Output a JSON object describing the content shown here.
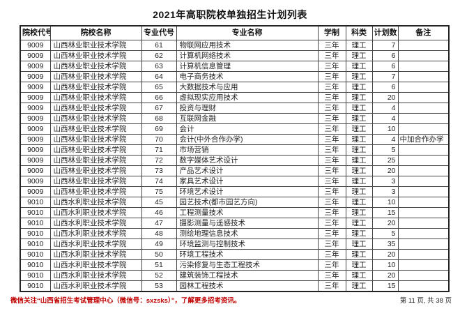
{
  "page": {
    "title": "2021年高职院校单独招生计划列表",
    "footer": {
      "notice": "微信关注“山西省招生考试管理中心（微信号：sxzsks）”，了解更多招考资讯。",
      "page_info": "第 11 页, 共 38 页"
    }
  },
  "table": {
    "headers": [
      "院校代号",
      "院校名称",
      "专业代号",
      "专业名称",
      "学制",
      "科类",
      "计划数",
      "备注"
    ],
    "rows": [
      [
        "9009",
        "山西林业职业技术学院",
        "61",
        "物联网应用技术",
        "三年",
        "理工",
        "7",
        ""
      ],
      [
        "9009",
        "山西林业职业技术学院",
        "62",
        "计算机网络技术",
        "三年",
        "理工",
        "6",
        ""
      ],
      [
        "9009",
        "山西林业职业技术学院",
        "63",
        "计算机信息管理",
        "三年",
        "理工",
        "6",
        ""
      ],
      [
        "9009",
        "山西林业职业技术学院",
        "64",
        "电子商务技术",
        "三年",
        "理工",
        "7",
        ""
      ],
      [
        "9009",
        "山西林业职业技术学院",
        "65",
        "大数据技术与应用",
        "三年",
        "理工",
        "6",
        ""
      ],
      [
        "9009",
        "山西林业职业技术学院",
        "66",
        "虚拟现实应用技术",
        "三年",
        "理工",
        "20",
        ""
      ],
      [
        "9009",
        "山西林业职业技术学院",
        "67",
        "投资与理财",
        "三年",
        "理工",
        "4",
        ""
      ],
      [
        "9009",
        "山西林业职业技术学院",
        "68",
        "互联网金融",
        "三年",
        "理工",
        "4",
        ""
      ],
      [
        "9009",
        "山西林业职业技术学院",
        "69",
        "会计",
        "三年",
        "理工",
        "10",
        ""
      ],
      [
        "9009",
        "山西林业职业技术学院",
        "70",
        "会计(中外合作办学)",
        "三年",
        "理工",
        "4",
        "中加合作办学"
      ],
      [
        "9009",
        "山西林业职业技术学院",
        "71",
        "市场营销",
        "三年",
        "理工",
        "5",
        ""
      ],
      [
        "9009",
        "山西林业职业技术学院",
        "72",
        "数字媒体艺术设计",
        "三年",
        "理工",
        "25",
        ""
      ],
      [
        "9009",
        "山西林业职业技术学院",
        "73",
        "产品艺术设计",
        "三年",
        "理工",
        "20",
        ""
      ],
      [
        "9009",
        "山西林业职业技术学院",
        "74",
        "家具艺术设计",
        "三年",
        "理工",
        "3",
        ""
      ],
      [
        "9009",
        "山西林业职业技术学院",
        "75",
        "环境艺术设计",
        "三年",
        "理工",
        "3",
        ""
      ],
      [
        "9010",
        "山西水利职业技术学院",
        "45",
        "园艺技术(都市园艺方向)",
        "三年",
        "理工",
        "10",
        ""
      ],
      [
        "9010",
        "山西水利职业技术学院",
        "46",
        "工程测量技术",
        "三年",
        "理工",
        "15",
        ""
      ],
      [
        "9010",
        "山西水利职业技术学院",
        "47",
        "摄影测量与遥感技术",
        "三年",
        "理工",
        "20",
        ""
      ],
      [
        "9010",
        "山西水利职业技术学院",
        "48",
        "测绘地理信息技术",
        "三年",
        "理工",
        "5",
        ""
      ],
      [
        "9010",
        "山西水利职业技术学院",
        "49",
        "环境监测与控制技术",
        "三年",
        "理工",
        "35",
        ""
      ],
      [
        "9010",
        "山西水利职业技术学院",
        "50",
        "环境工程技术",
        "三年",
        "理工",
        "20",
        ""
      ],
      [
        "9010",
        "山西水利职业技术学院",
        "51",
        "污染修复与生态工程技术",
        "三年",
        "理工",
        "10",
        ""
      ],
      [
        "9010",
        "山西水利职业技术学院",
        "52",
        "建筑装饰工程技术",
        "三年",
        "理工",
        "20",
        ""
      ],
      [
        "9010",
        "山西水利职业技术学院",
        "53",
        "园林工程技术",
        "三年",
        "理工",
        "15",
        ""
      ]
    ]
  },
  "colors": {
    "notice_red": "#c00000",
    "border_dark": "#444444",
    "text": "#1a1a1a"
  }
}
